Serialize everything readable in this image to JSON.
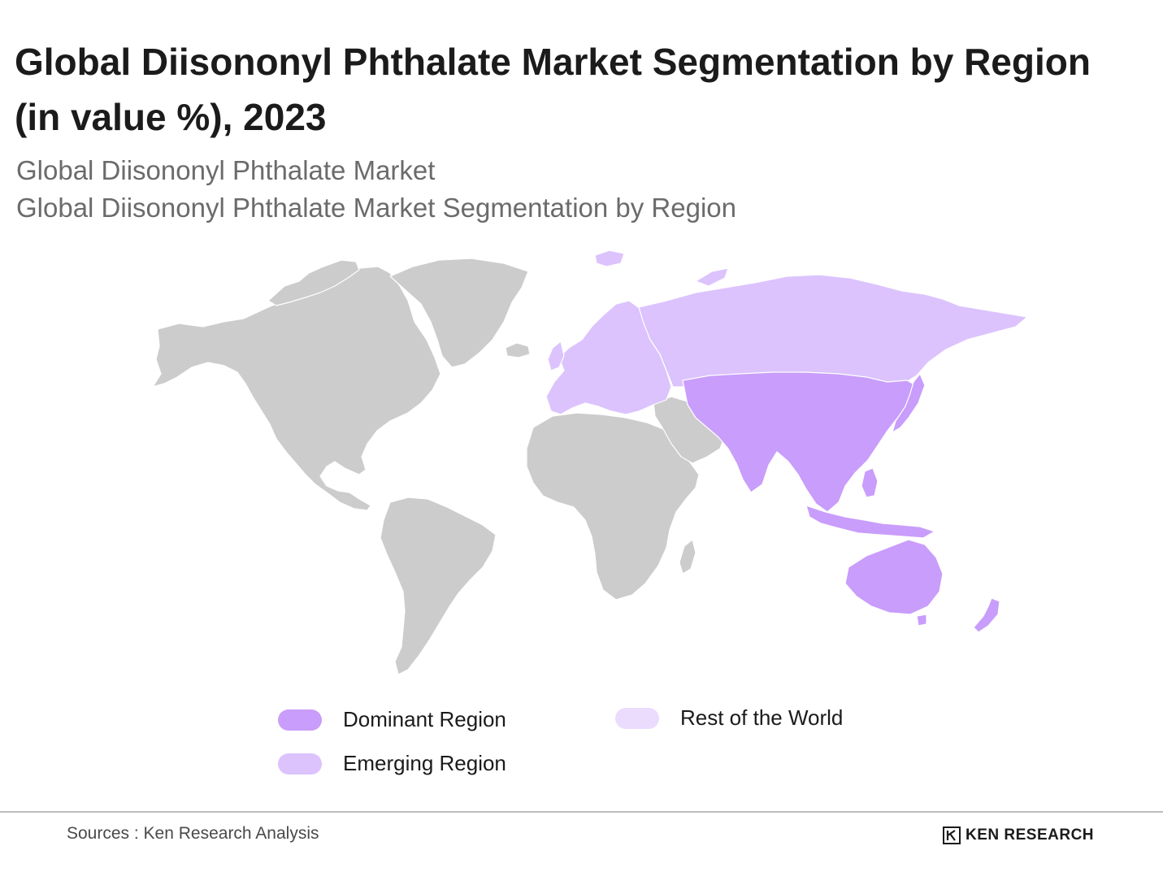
{
  "title": "Global Diisononyl Phthalate Market Segmentation by Region (in value %), 2023",
  "subtitle_1": "Global Diisononyl Phthalate Market",
  "subtitle_2": "Global Diisononyl Phthalate Market Segmentation by Region",
  "colors": {
    "dominant": "#c99dfb",
    "emerging": "#dcc3fd",
    "rest": "#ebdcfe",
    "unshaded_land": "#cccccc",
    "border": "#ffffff"
  },
  "legend": {
    "dominant_label": "Dominant Region",
    "emerging_label": "Emerging Region",
    "rest_label": "Rest of the World"
  },
  "regions": {
    "dominant": [
      "Asia-Pacific"
    ],
    "emerging": [
      "Europe",
      "Russia"
    ]
  },
  "footer": {
    "source": "Sources : Ken Research Analysis",
    "brand": "KEN RESEARCH"
  }
}
